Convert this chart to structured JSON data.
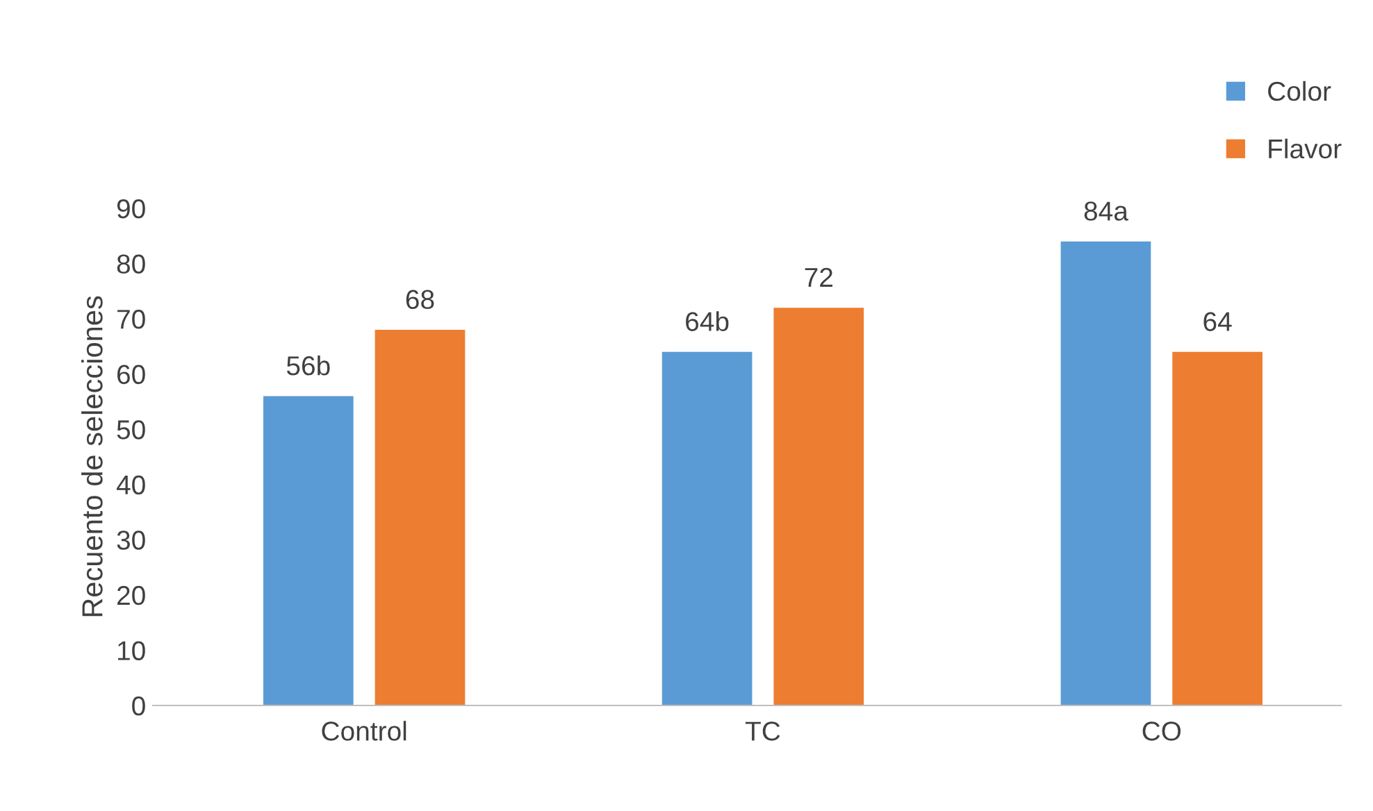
{
  "chart_data": {
    "type": "bar",
    "ylabel": "Recuento de selecciones",
    "categories": [
      "Control",
      "TC",
      "CO"
    ],
    "series": [
      {
        "name": "Color",
        "color": "#5b9bd5",
        "values": [
          56,
          64,
          84
        ],
        "value_labels": [
          "56b",
          "64b",
          "84a"
        ]
      },
      {
        "name": "Flavor",
        "color": "#ed7d31",
        "values": [
          68,
          72,
          64
        ],
        "value_labels": [
          "68",
          "72",
          "64"
        ]
      }
    ],
    "ylim": [
      0,
      90
    ],
    "yticks": [
      0,
      10,
      20,
      30,
      40,
      50,
      60,
      70,
      80,
      90
    ],
    "grid": false,
    "legend": "top right"
  }
}
